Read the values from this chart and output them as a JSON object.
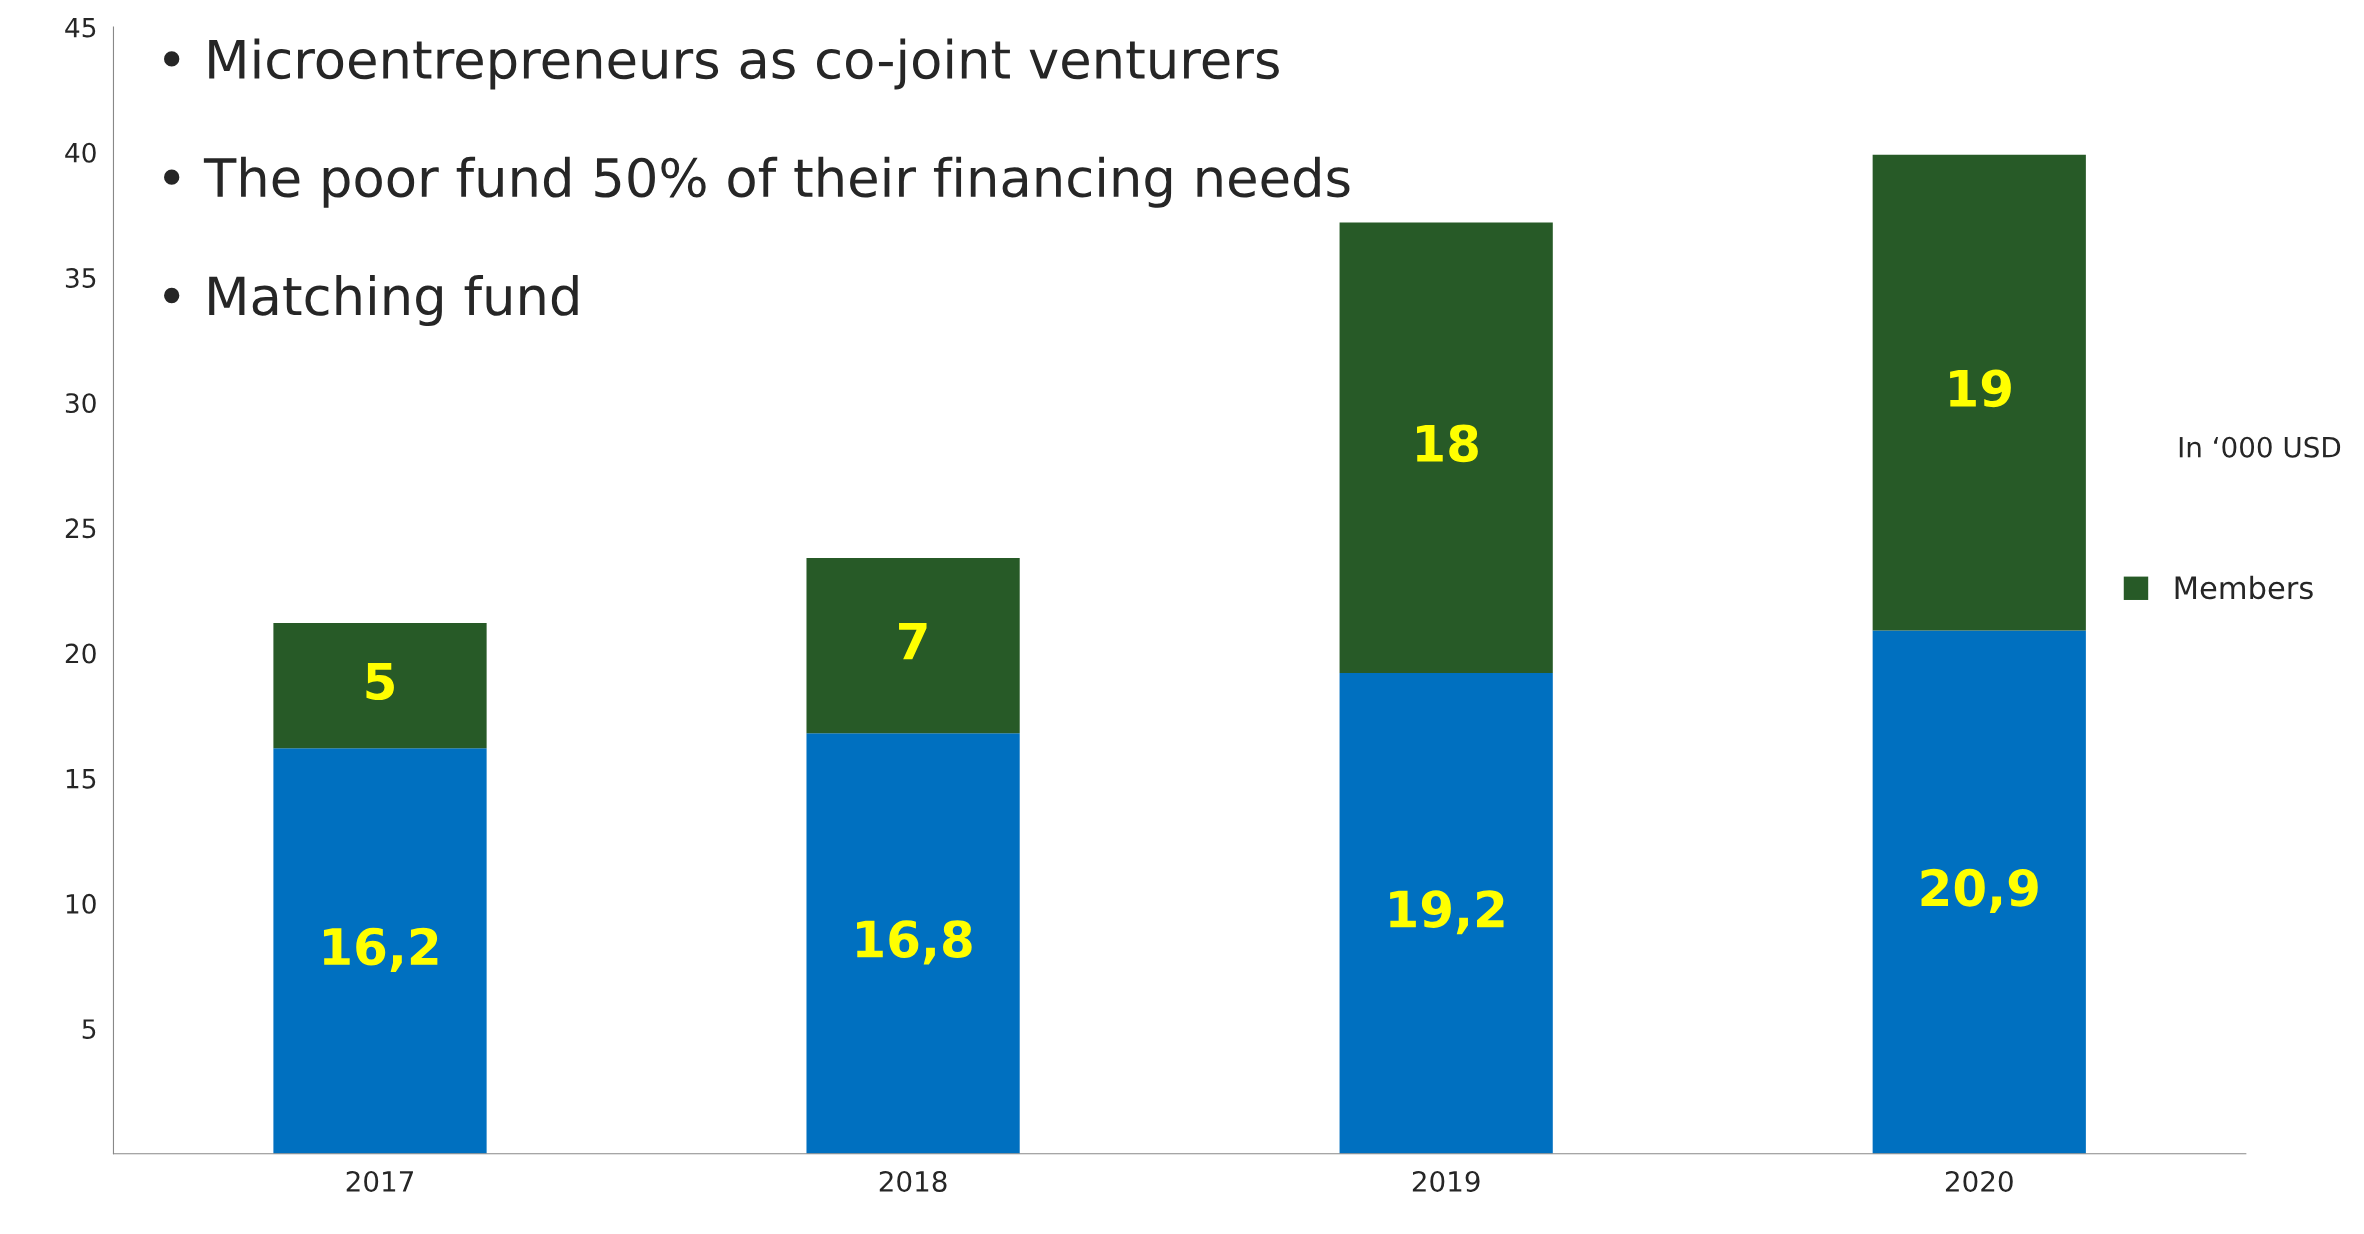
{
  "chart_data": {
    "type": "bar",
    "stacked": true,
    "categories": [
      "2017",
      "2018",
      "2019",
      "2020"
    ],
    "series": [
      {
        "color": "#0070c0",
        "values": [
          16.2,
          16.8,
          19.2,
          20.9
        ],
        "value_labels": [
          "16,2",
          "16,8",
          "19,2",
          "20,9"
        ]
      },
      {
        "name": "Members",
        "color": "#275a27",
        "values": [
          5,
          7,
          18,
          19
        ],
        "value_labels": [
          "5",
          "7",
          "18",
          "19"
        ]
      }
    ],
    "ylim": [
      0,
      45
    ],
    "yticks": [
      5,
      10,
      15,
      20,
      25,
      30,
      35,
      40,
      45
    ],
    "grid": false,
    "legend": "right",
    "annotations": [
      "• Microentrepreneurs as co-joint venturers",
      "• The poor fund 50% of their financing needs",
      "• Matching fund",
      "In ‘000 USD"
    ]
  }
}
